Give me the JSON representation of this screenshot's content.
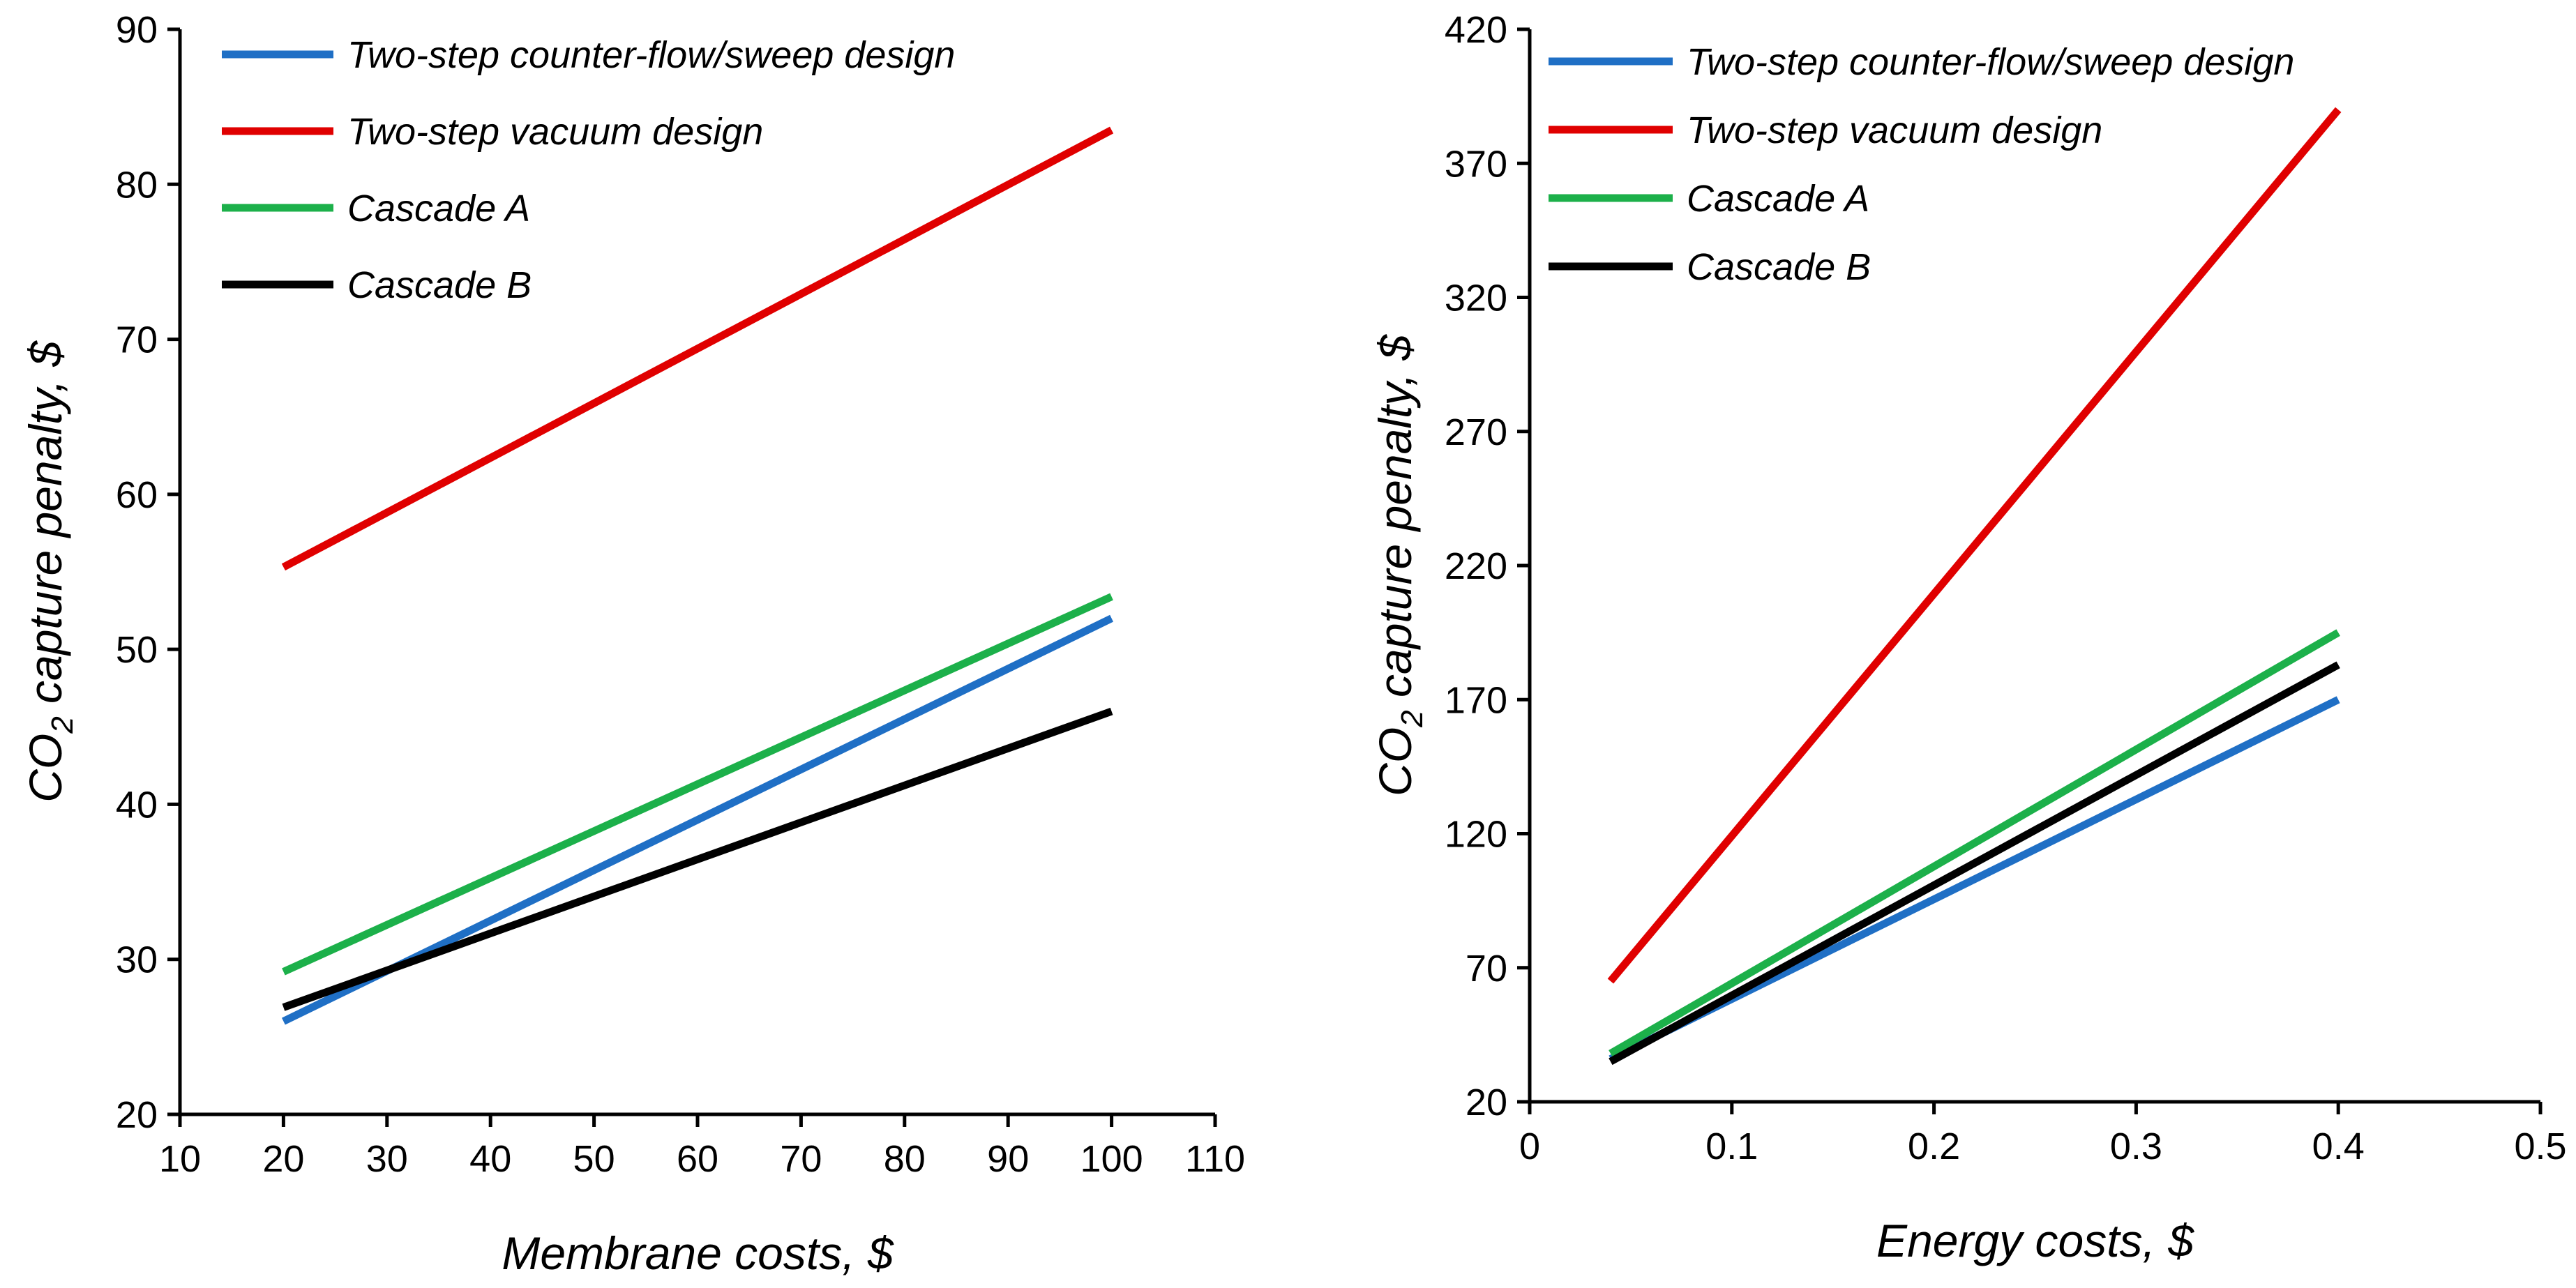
{
  "chart_data": [
    {
      "type": "line",
      "title": "",
      "xlabel": "Membrane costs, $",
      "ylabel_prefix": "CO",
      "ylabel_sub": "2",
      "ylabel_suffix": " capture penalty, $",
      "xlim": [
        10,
        110
      ],
      "ylim": [
        20,
        90
      ],
      "xticks": [
        10,
        20,
        30,
        40,
        50,
        60,
        70,
        80,
        90,
        100,
        110
      ],
      "yticks": [
        20,
        30,
        40,
        50,
        60,
        70,
        80,
        90
      ],
      "xtick_labels": [
        "10",
        "20",
        "30",
        "40",
        "50",
        "60",
        "70",
        "80",
        "90",
        "100",
        "110"
      ],
      "ytick_labels": [
        "20",
        "30",
        "40",
        "50",
        "60",
        "70",
        "80",
        "90"
      ],
      "legend_position": "top-left",
      "series": [
        {
          "name": "Two-step counter-flow/sweep design",
          "color": "#1f6fc5",
          "x": [
            20,
            100
          ],
          "y": [
            26,
            52
          ]
        },
        {
          "name": "Two-step vacuum design",
          "color": "#e00000",
          "x": [
            20,
            100
          ],
          "y": [
            55.3,
            83.5
          ]
        },
        {
          "name": "Cascade A",
          "color": "#1cb04a",
          "x": [
            20,
            100
          ],
          "y": [
            29.2,
            53.4
          ]
        },
        {
          "name": "Cascade B",
          "color": "#000000",
          "x": [
            20,
            100
          ],
          "y": [
            26.9,
            46
          ]
        }
      ]
    },
    {
      "type": "line",
      "title": "",
      "xlabel": "Energy costs, $",
      "ylabel_prefix": "CO",
      "ylabel_sub": "2",
      "ylabel_suffix": " capture penalty, $",
      "xlim": [
        0,
        0.5
      ],
      "ylim": [
        20,
        420
      ],
      "xticks": [
        0,
        0.1,
        0.2,
        0.3,
        0.4,
        0.5
      ],
      "yticks": [
        20,
        70,
        120,
        170,
        220,
        270,
        320,
        370,
        420
      ],
      "xtick_labels": [
        "0",
        "0.1",
        "0.2",
        "0.3",
        "0.4",
        "0.5"
      ],
      "ytick_labels": [
        "20",
        "70",
        "120",
        "170",
        "220",
        "270",
        "320",
        "370",
        "420"
      ],
      "legend_position": "top-left",
      "series": [
        {
          "name": "Two-step counter-flow/sweep design",
          "color": "#1f6fc5",
          "x": [
            0.04,
            0.4
          ],
          "y": [
            36,
            170
          ]
        },
        {
          "name": "Two-step vacuum design",
          "color": "#e00000",
          "x": [
            0.04,
            0.4
          ],
          "y": [
            65,
            390
          ]
        },
        {
          "name": "Cascade A",
          "color": "#1cb04a",
          "x": [
            0.04,
            0.4
          ],
          "y": [
            38,
            195
          ]
        },
        {
          "name": "Cascade B",
          "color": "#000000",
          "x": [
            0.04,
            0.4
          ],
          "y": [
            35,
            183
          ]
        }
      ]
    }
  ]
}
